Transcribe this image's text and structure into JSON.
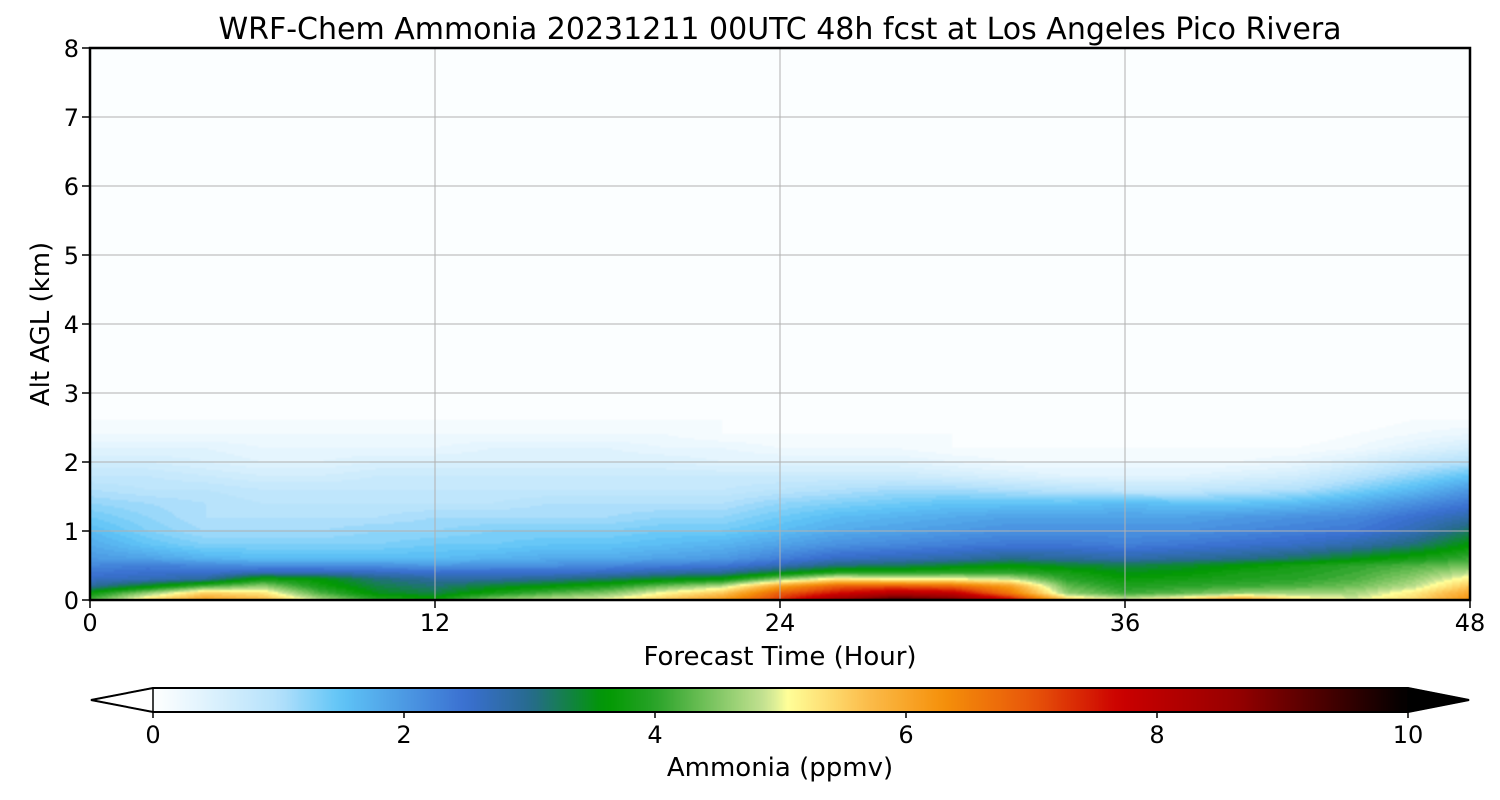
{
  "chart_data": {
    "type": "heatmap",
    "title": "WRF-Chem Ammonia  20231211 00UTC 48h fcst at Los Angeles Pico Rivera",
    "xlabel": "Forecast Time (Hour)",
    "ylabel": "Alt AGL (km)",
    "xlim": [
      0,
      48
    ],
    "ylim": [
      0,
      8
    ],
    "xticks": [
      0,
      12,
      24,
      36,
      48
    ],
    "yticks": [
      0,
      1,
      2,
      3,
      4,
      5,
      6,
      7,
      8
    ],
    "grid": true,
    "colorbar": {
      "label": "Ammonia  (ppmv)",
      "range": [
        0,
        10
      ],
      "ticks": [
        0,
        2,
        4,
        6,
        8,
        10
      ],
      "extend": "both",
      "stops": [
        {
          "v": 0.0,
          "c": "#ffffff"
        },
        {
          "v": 1.0,
          "c": "#b4e1fb"
        },
        {
          "v": 1.5,
          "c": "#5fc4f7"
        },
        {
          "v": 2.5,
          "c": "#3a6fd0"
        },
        {
          "v": 3.0,
          "c": "#276a8f"
        },
        {
          "v": 3.6,
          "c": "#009900"
        },
        {
          "v": 4.0,
          "c": "#29a329"
        },
        {
          "v": 4.9,
          "c": "#cbe596"
        },
        {
          "v": 5.05,
          "c": "#ffff99"
        },
        {
          "v": 5.7,
          "c": "#fcbc4a"
        },
        {
          "v": 6.3,
          "c": "#f5900a"
        },
        {
          "v": 7.0,
          "c": "#e8560a"
        },
        {
          "v": 7.7,
          "c": "#cc0000"
        },
        {
          "v": 8.6,
          "c": "#990000"
        },
        {
          "v": 9.3,
          "c": "#4d0000"
        },
        {
          "v": 10.0,
          "c": "#000000"
        }
      ]
    },
    "field": {
      "hours": [
        0,
        2,
        4,
        6,
        8,
        10,
        12,
        14,
        16,
        18,
        20,
        22,
        24,
        26,
        28,
        30,
        32,
        34,
        36,
        38,
        40,
        42,
        44,
        46,
        48
      ],
      "alt_km": [
        0.0,
        0.1,
        0.2,
        0.3,
        0.4,
        0.5,
        0.6,
        0.8,
        1.0,
        1.2,
        1.4,
        1.6,
        1.8,
        2.0,
        2.2,
        2.4,
        2.6,
        3.0,
        8.0
      ],
      "ppmv": [
        [
          4.2,
          5.4,
          6.1,
          5.8,
          4.8,
          4.0,
          3.8,
          4.6,
          4.9,
          5.1,
          5.6,
          6.2,
          7.3,
          8.6,
          9.5,
          9.1,
          7.8,
          5.6,
          5.0,
          5.5,
          6.2,
          5.3,
          5.0,
          5.4,
          6.3
        ],
        [
          3.7,
          4.6,
          5.5,
          5.3,
          4.2,
          3.5,
          3.3,
          3.8,
          4.2,
          4.5,
          5.1,
          5.6,
          6.9,
          7.6,
          8.1,
          7.9,
          6.6,
          4.6,
          4.1,
          4.3,
          4.6,
          4.7,
          4.7,
          5.2,
          6.0
        ],
        [
          2.9,
          3.5,
          4.2,
          4.6,
          3.8,
          3.3,
          3.1,
          3.4,
          3.6,
          3.9,
          4.4,
          4.8,
          6.1,
          6.9,
          7.0,
          6.8,
          6.1,
          4.3,
          3.9,
          4.0,
          4.1,
          4.2,
          4.4,
          4.8,
          5.6
        ],
        [
          2.6,
          2.7,
          2.9,
          3.8,
          3.6,
          3.1,
          2.9,
          2.9,
          3.0,
          3.2,
          3.5,
          3.7,
          4.6,
          5.3,
          5.1,
          5.1,
          4.9,
          4.0,
          3.7,
          3.8,
          3.9,
          4.0,
          4.2,
          4.6,
          5.2
        ],
        [
          2.4,
          2.5,
          2.5,
          2.7,
          2.7,
          2.6,
          2.5,
          2.5,
          2.5,
          2.6,
          2.8,
          2.9,
          3.4,
          3.9,
          3.9,
          4.0,
          4.0,
          3.8,
          3.5,
          3.6,
          3.8,
          3.9,
          4.1,
          4.4,
          4.8
        ],
        [
          2.2,
          2.3,
          2.2,
          2.1,
          2.1,
          2.1,
          2.0,
          2.1,
          2.1,
          2.2,
          2.3,
          2.4,
          2.7,
          3.1,
          3.2,
          3.4,
          3.6,
          3.4,
          3.3,
          3.4,
          3.6,
          3.8,
          4.0,
          4.2,
          4.4
        ],
        [
          2.0,
          1.9,
          1.7,
          1.6,
          1.6,
          1.6,
          1.6,
          1.7,
          1.8,
          1.8,
          1.9,
          2.0,
          2.3,
          2.6,
          2.7,
          2.8,
          3.0,
          2.9,
          2.8,
          2.9,
          3.0,
          3.2,
          3.5,
          3.8,
          4.1
        ],
        [
          1.8,
          1.5,
          1.3,
          1.3,
          1.3,
          1.3,
          1.4,
          1.4,
          1.5,
          1.5,
          1.6,
          1.7,
          1.9,
          2.1,
          2.2,
          2.3,
          2.4,
          2.4,
          2.3,
          2.4,
          2.5,
          2.6,
          2.8,
          3.1,
          3.6
        ],
        [
          1.6,
          1.3,
          1.1,
          1.1,
          1.1,
          1.2,
          1.2,
          1.3,
          1.3,
          1.3,
          1.4,
          1.4,
          1.6,
          1.8,
          1.9,
          2.0,
          2.1,
          2.1,
          2.1,
          2.1,
          2.2,
          2.3,
          2.4,
          2.7,
          3.2
        ],
        [
          1.4,
          1.2,
          1.0,
          1.0,
          1.0,
          1.0,
          1.1,
          1.1,
          1.1,
          1.1,
          1.2,
          1.2,
          1.4,
          1.6,
          1.7,
          1.8,
          1.9,
          1.9,
          1.9,
          1.9,
          2.0,
          2.1,
          2.2,
          2.5,
          2.8
        ],
        [
          1.2,
          1.1,
          1.0,
          0.9,
          0.9,
          0.9,
          0.9,
          0.9,
          1.0,
          1.0,
          1.0,
          1.0,
          1.2,
          1.3,
          1.4,
          1.5,
          1.5,
          1.5,
          1.6,
          1.5,
          1.5,
          1.6,
          1.8,
          2.1,
          2.4
        ],
        [
          1.0,
          0.9,
          0.9,
          0.8,
          0.8,
          0.8,
          0.8,
          0.8,
          0.8,
          0.8,
          0.8,
          0.8,
          0.9,
          1.0,
          1.1,
          1.1,
          1.0,
          0.9,
          0.8,
          0.8,
          0.9,
          1.0,
          1.3,
          1.6,
          2.0
        ],
        [
          0.8,
          0.8,
          0.7,
          0.6,
          0.6,
          0.7,
          0.7,
          0.7,
          0.7,
          0.7,
          0.7,
          0.7,
          0.7,
          0.7,
          0.7,
          0.6,
          0.5,
          0.4,
          0.4,
          0.4,
          0.5,
          0.6,
          0.9,
          1.2,
          1.5
        ],
        [
          0.6,
          0.6,
          0.5,
          0.4,
          0.4,
          0.5,
          0.5,
          0.5,
          0.5,
          0.5,
          0.5,
          0.4,
          0.4,
          0.4,
          0.4,
          0.3,
          0.2,
          0.2,
          0.2,
          0.2,
          0.2,
          0.3,
          0.5,
          0.8,
          1.0
        ],
        [
          0.4,
          0.4,
          0.4,
          0.3,
          0.3,
          0.3,
          0.3,
          0.4,
          0.4,
          0.4,
          0.3,
          0.3,
          0.2,
          0.2,
          0.2,
          0.1,
          0.1,
          0.1,
          0.1,
          0.1,
          0.1,
          0.1,
          0.2,
          0.4,
          0.6
        ],
        [
          0.2,
          0.2,
          0.2,
          0.2,
          0.2,
          0.2,
          0.2,
          0.2,
          0.2,
          0.2,
          0.2,
          0.1,
          0.1,
          0.1,
          0.1,
          0.1,
          0.0,
          0.0,
          0.0,
          0.0,
          0.0,
          0.0,
          0.1,
          0.2,
          0.3
        ],
        [
          0.1,
          0.1,
          0.1,
          0.1,
          0.1,
          0.1,
          0.1,
          0.1,
          0.1,
          0.1,
          0.1,
          0.1,
          0.0,
          0.0,
          0.0,
          0.0,
          0.0,
          0.0,
          0.0,
          0.0,
          0.0,
          0.0,
          0.0,
          0.1,
          0.1
        ],
        [
          0.02,
          0.02,
          0.02,
          0.02,
          0.02,
          0.02,
          0.02,
          0.02,
          0.02,
          0.02,
          0.02,
          0.02,
          0.01,
          0.01,
          0.01,
          0.01,
          0.0,
          0.0,
          0.0,
          0.0,
          0.0,
          0.0,
          0.0,
          0.02,
          0.02
        ],
        [
          0.0,
          0.0,
          0.0,
          0.0,
          0.0,
          0.0,
          0.0,
          0.0,
          0.0,
          0.0,
          0.0,
          0.0,
          0.0,
          0.0,
          0.0,
          0.0,
          0.0,
          0.0,
          0.0,
          0.0,
          0.0,
          0.0,
          0.0,
          0.0,
          0.0
        ]
      ]
    }
  }
}
